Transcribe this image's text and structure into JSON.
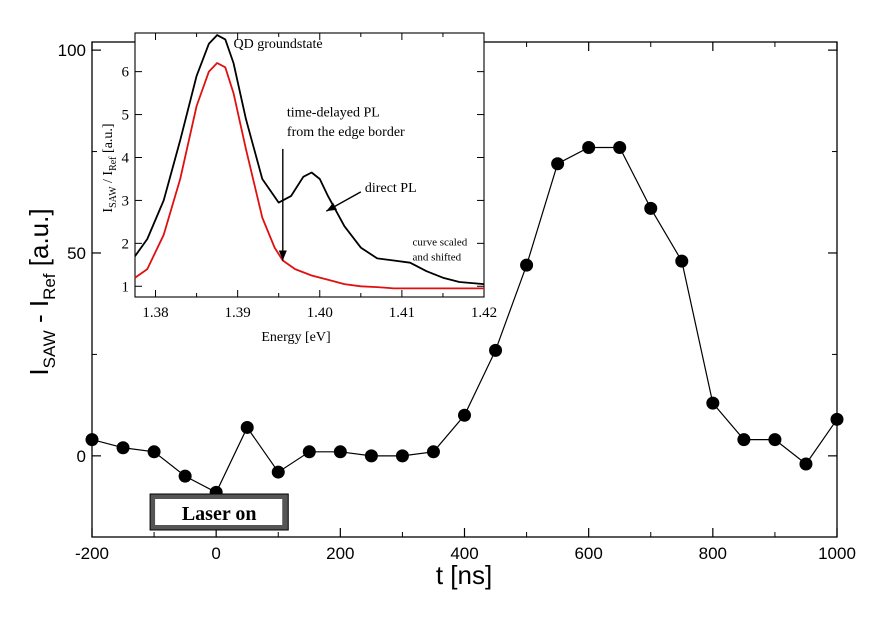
{
  "chart_data": [
    {
      "type": "scatter",
      "connected": true,
      "x": [
        -200,
        -150,
        -100,
        -50,
        0,
        50,
        100,
        150,
        200,
        250,
        300,
        350,
        400,
        450,
        500,
        550,
        600,
        650,
        700,
        750,
        800,
        850,
        900,
        950,
        1000
      ],
      "y": [
        4,
        2,
        1,
        -5,
        -9,
        7,
        -4,
        1,
        1,
        0,
        0,
        1,
        10,
        26,
        47,
        72,
        76,
        76,
        61,
        48,
        13,
        4,
        4,
        -2,
        9
      ],
      "xlim": [
        -200,
        1000
      ],
      "ylim": [
        -20,
        102
      ],
      "xticks": [
        "-200",
        "0",
        "200",
        "400",
        "600",
        "800",
        "1000"
      ],
      "yticks": [
        "0",
        "50",
        "100"
      ],
      "xlabel": "t [ns]",
      "ylabel": {
        "main": "I",
        "sub1": "SAW",
        "mid": " - I",
        "sub2": "Ref",
        "tail": " [a.u.]"
      },
      "grid": false,
      "annotation": {
        "text": "Laser on",
        "x_start": -100,
        "x_end": 100
      }
    },
    {
      "type": "line",
      "inset": true,
      "xlim": [
        1.3775,
        1.42
      ],
      "ylim": [
        0.75,
        6.9
      ],
      "xticks": [
        "1.38",
        "1.39",
        "1.40",
        "1.41",
        "1.42"
      ],
      "yticks": [
        "1",
        "2",
        "3",
        "4",
        "5",
        "6"
      ],
      "xlabel": "Energy [eV]",
      "ylabel": {
        "main": "I",
        "sub1": "SAW",
        "mid": " / I",
        "sub2": "Ref",
        "tail": " [a.u.]"
      },
      "series": [
        {
          "color": "#000000",
          "x": [
            1.3775,
            1.379,
            1.381,
            1.383,
            1.385,
            1.3865,
            1.3875,
            1.3885,
            1.3895,
            1.391,
            1.393,
            1.395,
            1.3965,
            1.398,
            1.399,
            1.4,
            1.401,
            1.403,
            1.405,
            1.407,
            1.409,
            1.411,
            1.413,
            1.415,
            1.417,
            1.42
          ],
          "y": [
            1.7,
            2.1,
            3.0,
            4.4,
            5.9,
            6.65,
            6.85,
            6.75,
            6.2,
            4.9,
            3.5,
            2.95,
            3.1,
            3.55,
            3.65,
            3.5,
            3.1,
            2.4,
            1.9,
            1.65,
            1.6,
            1.55,
            1.35,
            1.2,
            1.1,
            1.05
          ]
        },
        {
          "color": "#e01010",
          "x": [
            1.3775,
            1.379,
            1.381,
            1.383,
            1.385,
            1.3865,
            1.3875,
            1.3885,
            1.3895,
            1.391,
            1.393,
            1.3945,
            1.3955,
            1.397,
            1.399,
            1.401,
            1.403,
            1.405,
            1.407,
            1.409,
            1.412,
            1.415,
            1.42
          ],
          "y": [
            1.2,
            1.4,
            2.2,
            3.5,
            5.2,
            6.0,
            6.2,
            6.1,
            5.5,
            4.2,
            2.6,
            1.9,
            1.6,
            1.4,
            1.25,
            1.15,
            1.05,
            1.0,
            0.98,
            0.95,
            0.95,
            0.95,
            0.95
          ]
        }
      ],
      "annotations": [
        {
          "text": "QD groundstate",
          "x": 1.3895,
          "y": 6.55
        },
        {
          "text": "time-delayed PL",
          "x": 1.396,
          "y": 4.95
        },
        {
          "text": "from the edge border",
          "x": 1.396,
          "y": 4.5
        },
        {
          "text": "direct PL",
          "x": 1.4055,
          "y": 3.2
        },
        {
          "text": "curve scaled",
          "x": 1.4113,
          "y": 1.95
        },
        {
          "text": "and shifted",
          "x": 1.4113,
          "y": 1.6
        }
      ],
      "arrows": [
        {
          "from": [
            1.3955,
            4.2
          ],
          "to": [
            1.3955,
            1.6
          ]
        },
        {
          "from": [
            1.405,
            3.2
          ],
          "to": [
            1.4008,
            2.75
          ]
        }
      ]
    }
  ]
}
